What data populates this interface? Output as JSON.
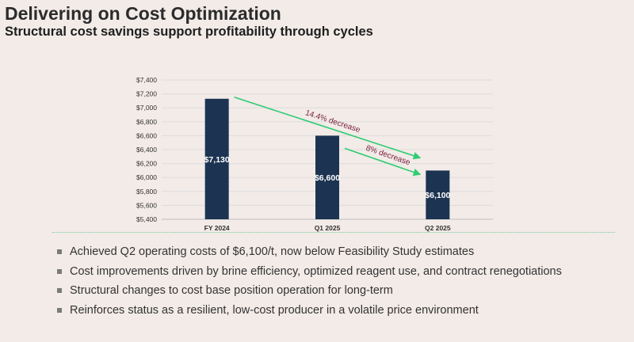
{
  "slide": {
    "title": "Delivering on Cost Optimization",
    "subtitle": "Structural cost savings support profitability through cycles"
  },
  "chart_data": {
    "type": "bar",
    "categories": [
      "FY 2024",
      "Q1 2025",
      "Q2 2025"
    ],
    "values": [
      7130,
      6600,
      6100
    ],
    "data_labels": [
      "$7,130",
      "$6,600",
      "$6,100"
    ],
    "y_ticks": [
      "$5,400",
      "$5,600",
      "$5,800",
      "$6,000",
      "$6,200",
      "$6,400",
      "$6,600",
      "$6,800",
      "$7,000",
      "$7,200",
      "$7,400"
    ],
    "ylim": [
      5400,
      7400
    ],
    "grid": true,
    "bar_color": "#1c3452",
    "annotations": [
      {
        "text": "14.4% decrease",
        "from": "FY 2024",
        "to": "Q2 2025"
      },
      {
        "text": "8% decrease",
        "from": "Q1 2025",
        "to": "Q2 2025"
      }
    ],
    "arrow_color": "#2ecc71",
    "annotation_text_color": "#7a1f3d"
  },
  "bullets": [
    "Achieved Q2 operating costs of $6,100/t, now below Feasibility Study estimates",
    "Cost improvements driven by brine efficiency, optimized reagent use, and contract renegotiations",
    "Structural changes to cost base position operation for long-term",
    "Reinforces status as a resilient, low-cost producer in a volatile price environment"
  ]
}
